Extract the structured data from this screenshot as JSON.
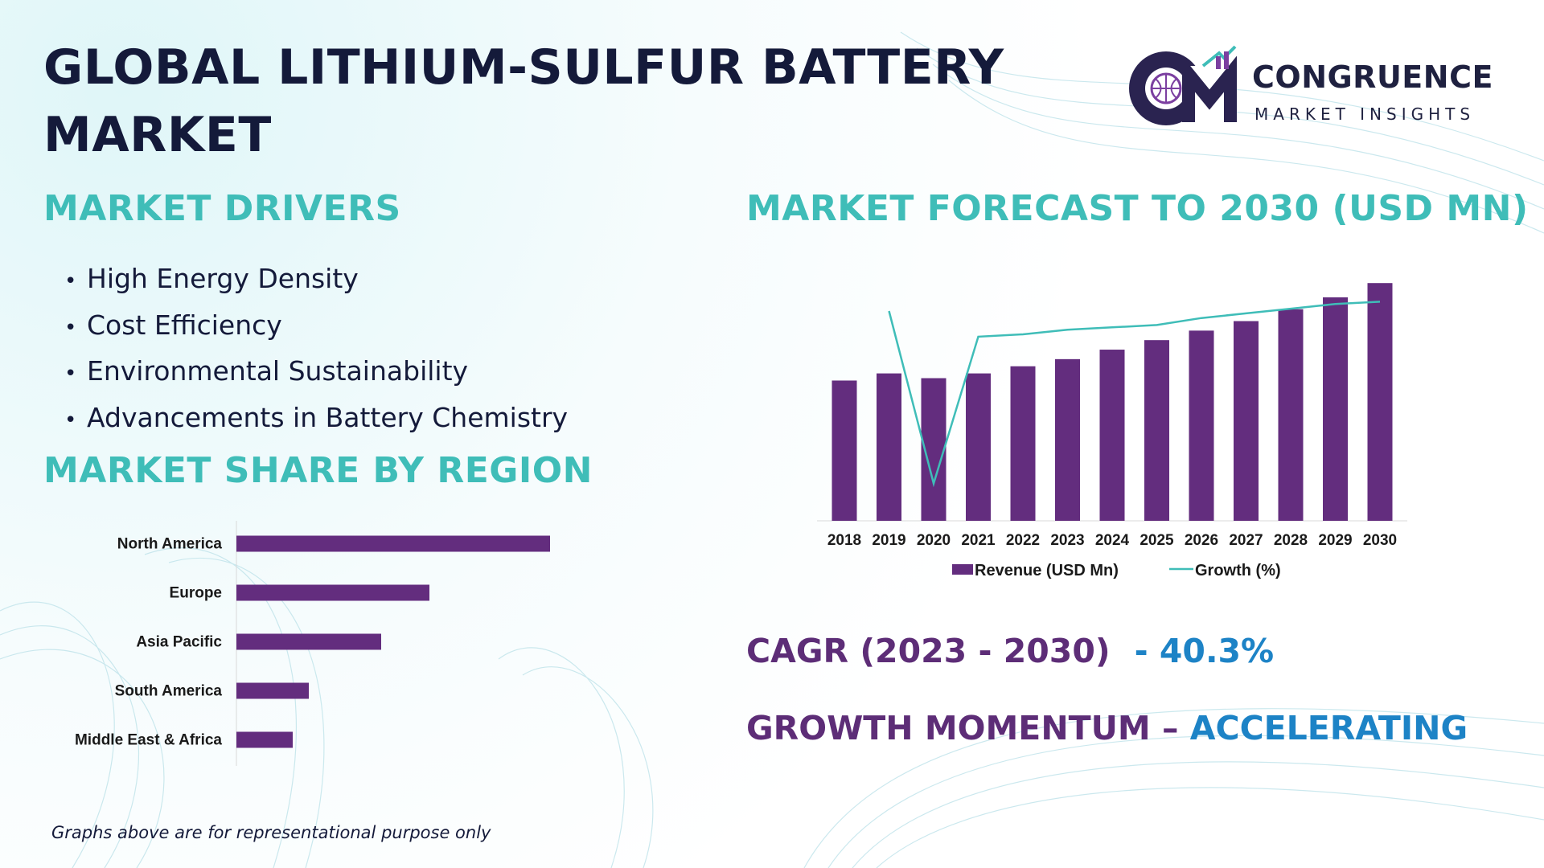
{
  "title": "GLOBAL LITHIUM-SULFUR BATTERY MARKET",
  "logo": {
    "name": "CONGRUENCE",
    "subtitle": "MARKET INSIGHTS",
    "colors": {
      "dark": "#2a2350",
      "accent": "#7b3fa0",
      "teal": "#3fbdb8"
    }
  },
  "drivers": {
    "heading": "MARKET DRIVERS",
    "items": [
      "High Energy Density",
      "Cost Efficiency",
      "Environmental Sustainability",
      "Advancements in Battery Chemistry"
    ]
  },
  "region": {
    "heading": "MARKET SHARE BY REGION"
  },
  "forecast": {
    "heading": "MARKET FORECAST TO 2030 (USD MN)"
  },
  "cagr": {
    "label": "CAGR (2023 - 2030)",
    "value": "- 40.3%"
  },
  "momentum": {
    "label": "GROWTH MOMENTUM – ",
    "value": "ACCELERATING"
  },
  "footnote": "Graphs above are for representational purpose only",
  "colors": {
    "bar": "#632d7e",
    "line": "#3fbdb8",
    "heading": "#3fbdb8",
    "purple_text": "#5d2d77",
    "blue_text": "#1d83c6"
  },
  "chart_data": [
    {
      "type": "bar",
      "orientation": "horizontal",
      "categories": [
        "North America",
        "Europe",
        "Asia Pacific",
        "South America",
        "Middle East & Africa"
      ],
      "values": [
        39,
        24,
        18,
        9,
        7
      ],
      "xlim": [
        0,
        40
      ],
      "title": "",
      "xlabel": "",
      "ylabel": ""
    },
    {
      "type": "bar",
      "categories": [
        "2018",
        "2019",
        "2020",
        "2021",
        "2022",
        "2023",
        "2024",
        "2025",
        "2026",
        "2027",
        "2028",
        "2029",
        "2030"
      ],
      "series": [
        {
          "name": "Revenue (USD Mn)",
          "type": "bar",
          "values": [
            59,
            62,
            60,
            62,
            65,
            68,
            72,
            76,
            80,
            84,
            89,
            94,
            100
          ]
        },
        {
          "name": "Growth (%)",
          "type": "line",
          "values": [
            null,
            90,
            16,
            79,
            80,
            82,
            83,
            84,
            87,
            89,
            91,
            93,
            94
          ]
        }
      ],
      "ylim": [
        0,
        100
      ],
      "legend": "bottom",
      "title": "",
      "xlabel": "",
      "ylabel": ""
    }
  ]
}
